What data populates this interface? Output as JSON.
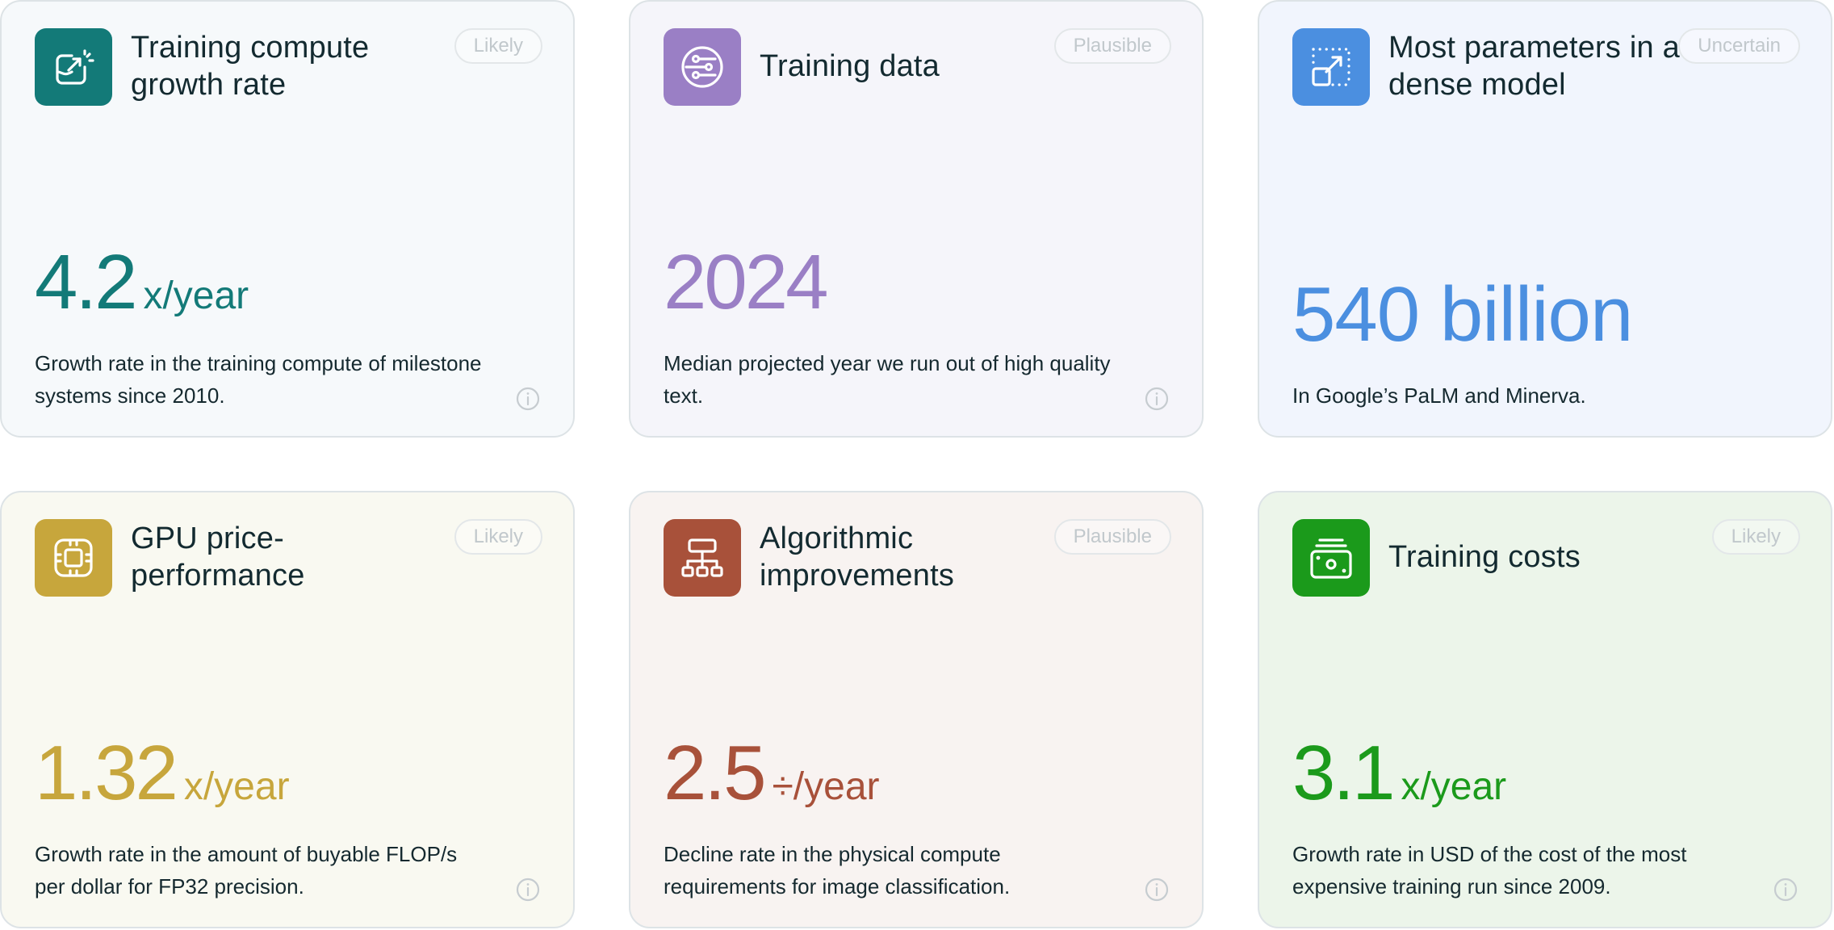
{
  "cards": [
    {
      "title": "Training compute growth rate",
      "badge": "Likely",
      "value": "4.2",
      "unit": "x/year",
      "description": "Growth rate in the training compute of milestone systems since 2010.",
      "icon": "chart-growth-icon",
      "accent": "#137a78",
      "background": "#f6f9fb"
    },
    {
      "title": "Training data",
      "badge": "Plausible",
      "value": "2024",
      "unit": "",
      "description": "Median projected year we run out of high quality text.",
      "icon": "data-sliders-icon",
      "accent": "#9a7fc5",
      "background": "#f5f5fa"
    },
    {
      "title": "Most parameters in a dense model",
      "badge": "Uncertain",
      "value": "540 billion",
      "unit": "",
      "description": "In Google’s PaLM and Minerva.",
      "icon": "scale-up-icon",
      "accent": "#4b8fe0",
      "background": "#f1f5fd"
    },
    {
      "title": "GPU price-performance",
      "badge": "Likely",
      "value": "1.32",
      "unit": "x/year",
      "description": "Growth rate in the amount of buyable FLOP/s per dollar for FP32 precision.",
      "icon": "chip-icon",
      "accent": "#c7a63c",
      "background": "#f9f9f1"
    },
    {
      "title": "Algorithmic improvements",
      "badge": "Plausible",
      "value": "2.5",
      "unit": "÷/year",
      "description": "Decline rate in the physical compute requirements for image classification.",
      "icon": "hierarchy-icon",
      "accent": "#a8513a",
      "background": "#f8f3f1"
    },
    {
      "title": "Training costs",
      "badge": "Likely",
      "value": "3.1",
      "unit": "x/year",
      "description": "Growth rate in USD of the cost of the most expensive training run since 2009.",
      "icon": "money-icon",
      "accent": "#1b9a1b",
      "background": "#ecf5ea"
    }
  ]
}
